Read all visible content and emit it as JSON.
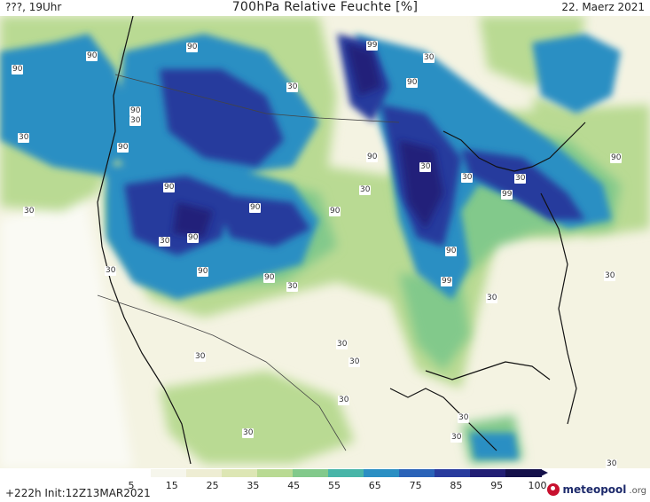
{
  "header": {
    "left": "???, 19Uhr",
    "center": "700hPa Relative Feuchte [%]",
    "right": "22. Maerz 2021"
  },
  "map": {
    "contour_labels": [
      "90",
      "90",
      "99",
      "30",
      "90",
      "90",
      "30",
      "90",
      "30",
      "30",
      "90",
      "90",
      "30",
      "90",
      "30",
      "30",
      "30",
      "99",
      "90",
      "90",
      "90",
      "30",
      "90",
      "90",
      "90",
      "99",
      "30",
      "90",
      "30",
      "30",
      "30",
      "30",
      "30",
      "30",
      "30",
      "30",
      "30",
      "30",
      "30",
      "30"
    ]
  },
  "legend": {
    "ticks": [
      "5",
      "15",
      "25",
      "35",
      "45",
      "55",
      "65",
      "75",
      "85",
      "95",
      "100"
    ],
    "colors": [
      "#ffffff",
      "#f6f6ec",
      "#eeedd3",
      "#dde6b4",
      "#b9da93",
      "#82c98b",
      "#48b5a8",
      "#2b8fc3",
      "#2a63b8",
      "#283b9d",
      "#221e74",
      "#14104a"
    ]
  },
  "footer": {
    "run_info": "+222h  Init:12Z13MAR2021",
    "logo_text": "meteopool",
    "logo_suffix": ".org"
  },
  "colors": {
    "humid_high": "#283b9d",
    "humid_mid": "#2b8fc3",
    "humid_low": "#b9da93",
    "dry": "#f4f3e2"
  }
}
